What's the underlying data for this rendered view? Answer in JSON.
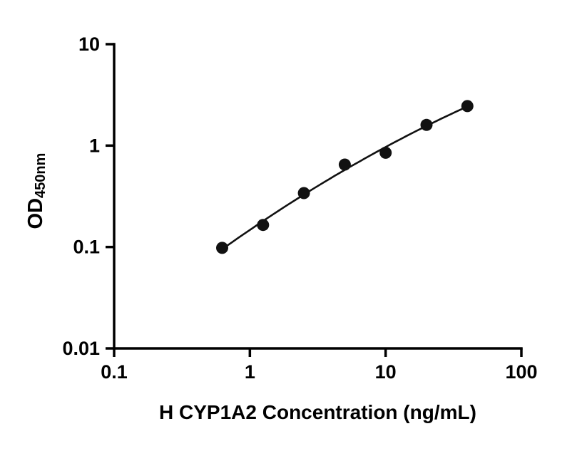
{
  "chart_data": {
    "type": "scatter",
    "title": "",
    "xlabel": "H CYP1A2 Concentration (ng/mL)",
    "ylabel_main": "OD",
    "ylabel_sub": "450nm",
    "x": [
      0.625,
      1.25,
      2.5,
      5,
      10,
      20,
      40
    ],
    "y": [
      0.098,
      0.165,
      0.34,
      0.65,
      0.85,
      1.6,
      2.45
    ],
    "xscale": "log",
    "yscale": "log",
    "xlim": [
      0.1,
      100
    ],
    "ylim": [
      0.01,
      10
    ],
    "x_tick_values": [
      0.1,
      1,
      10,
      100
    ],
    "x_tick_labels": [
      "0.1",
      "1",
      "10",
      "100"
    ],
    "y_tick_values": [
      0.01,
      0.1,
      1,
      10
    ],
    "y_tick_labels": [
      "0.01",
      "0.1",
      "1",
      "10"
    ],
    "trendline": true,
    "grid": false,
    "legend": null,
    "marker_color": "#111111",
    "line_color": "#111111",
    "axis_color": "#000000",
    "background": "#ffffff"
  }
}
